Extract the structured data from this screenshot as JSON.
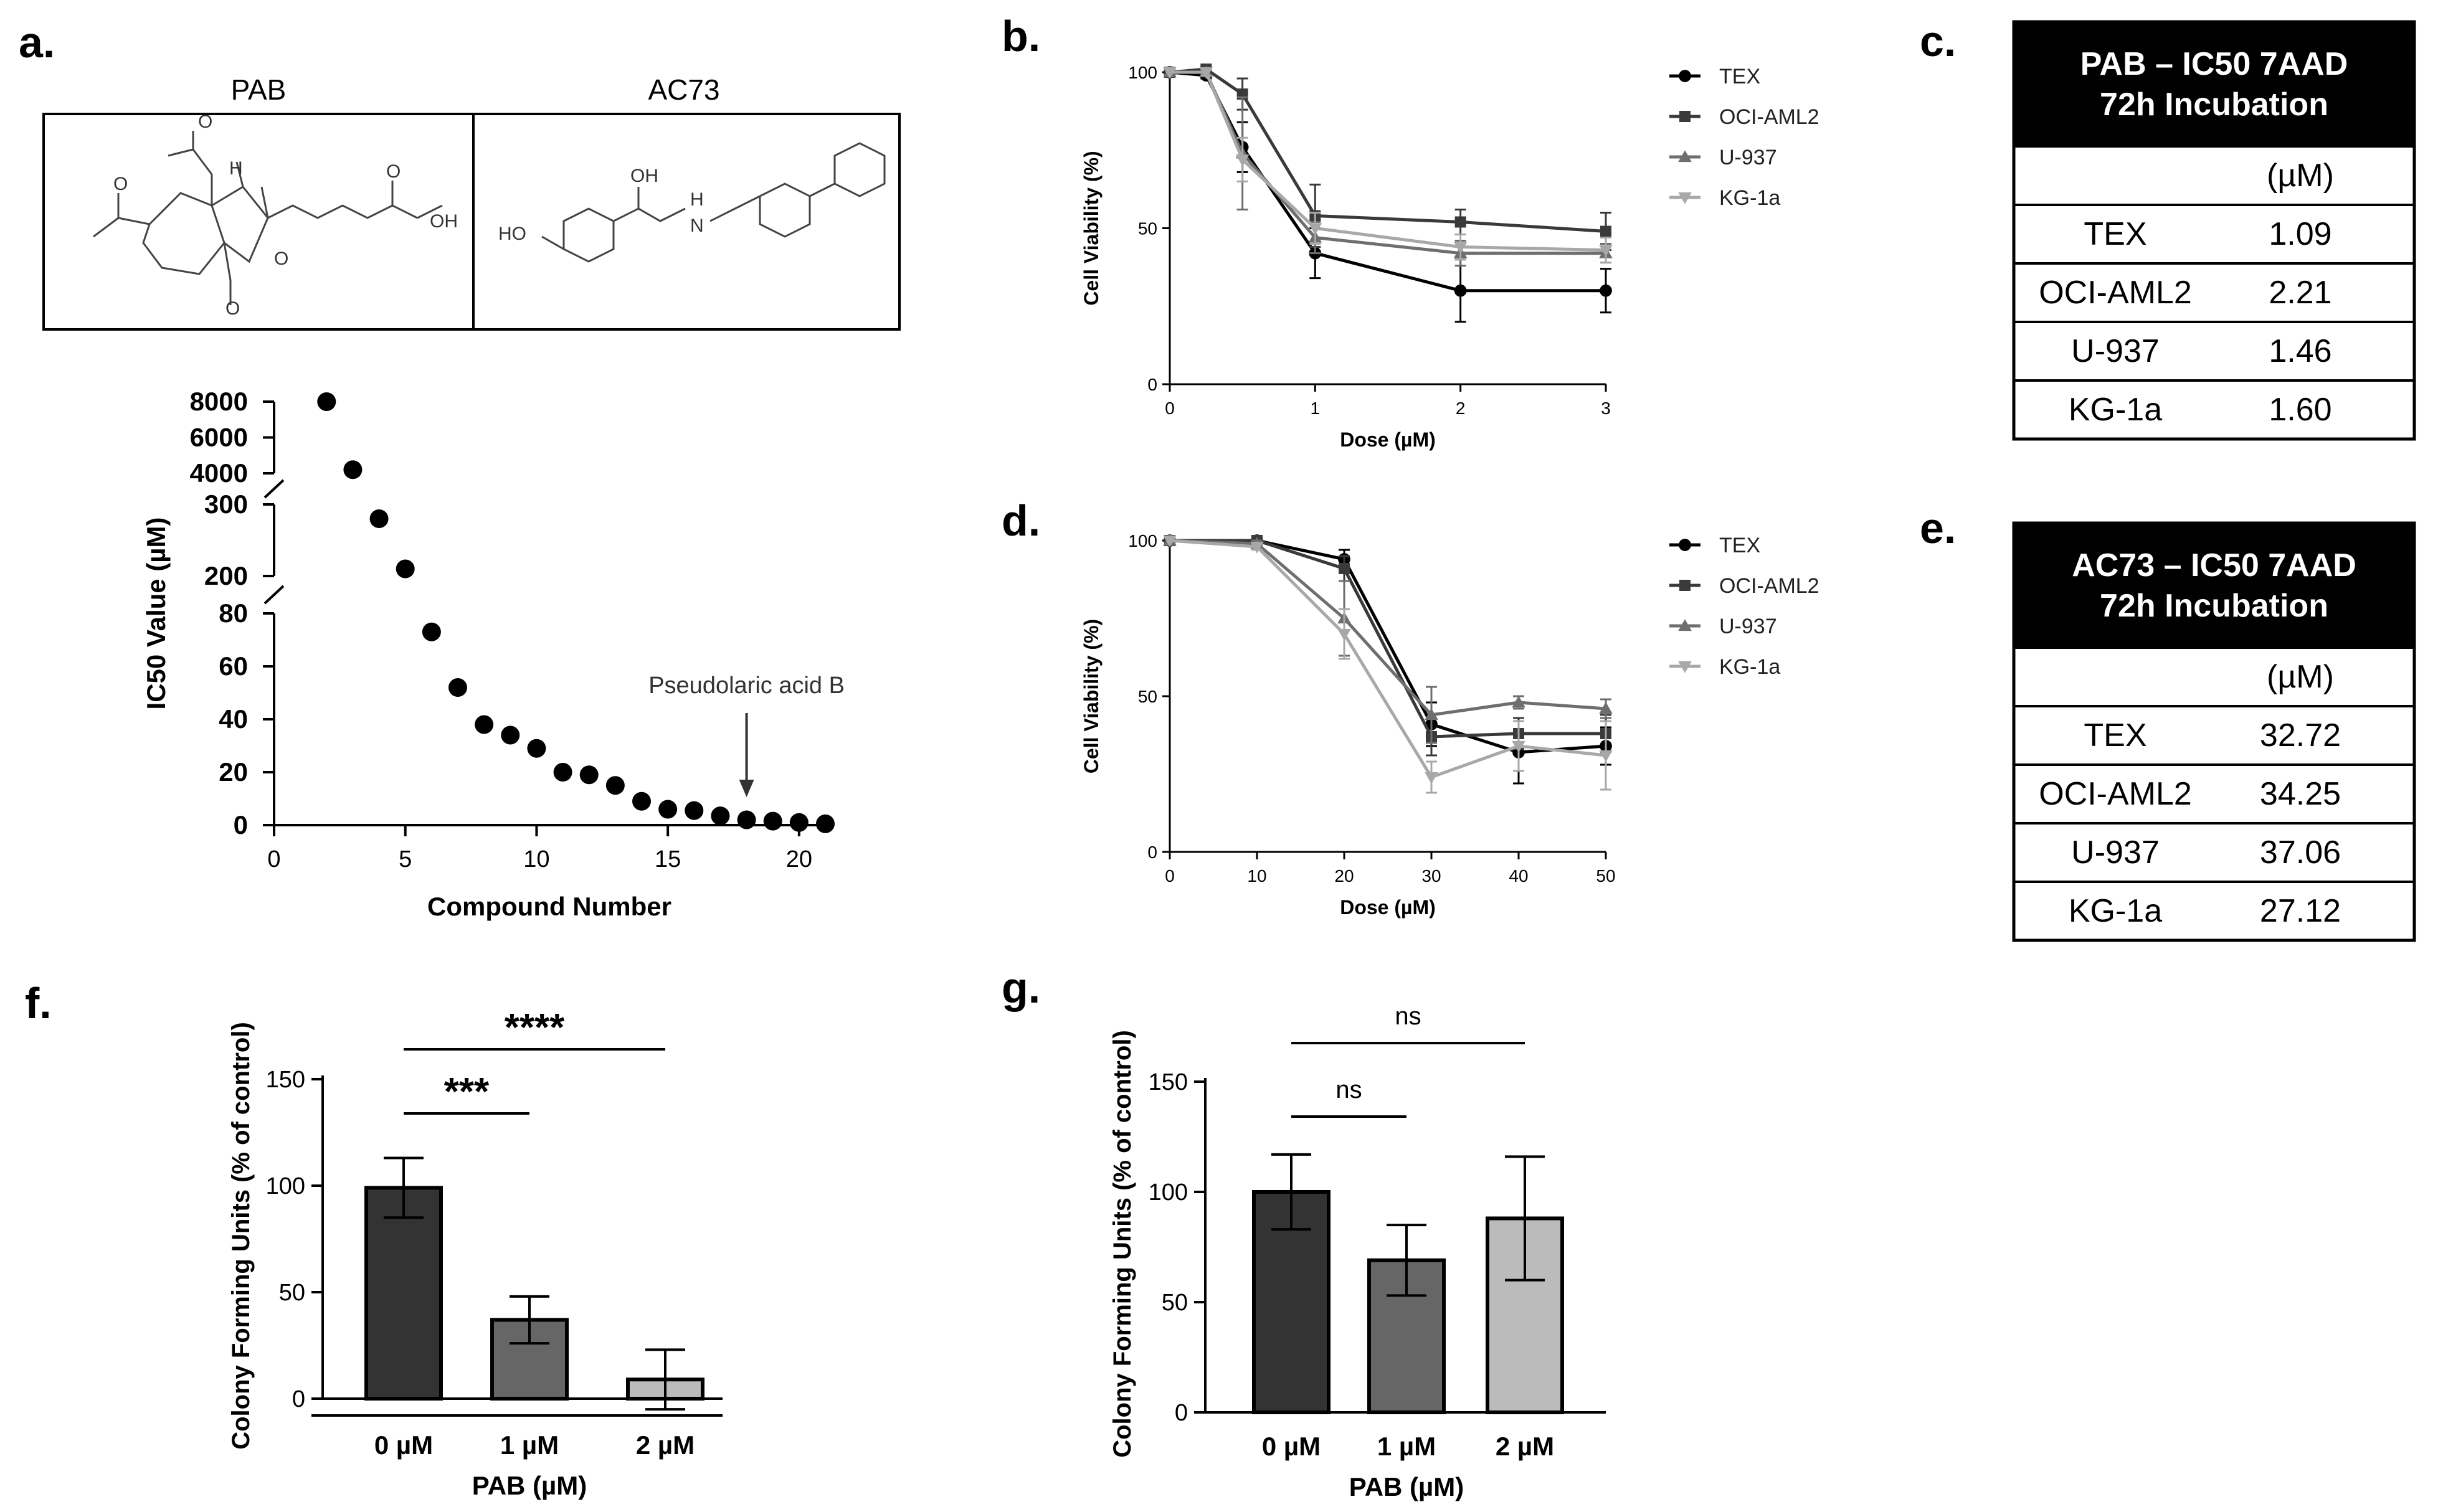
{
  "panels": {
    "a": "a.",
    "b": "b.",
    "c": "c.",
    "d": "d.",
    "e": "e.",
    "f": "f.",
    "g": "g."
  },
  "structures": {
    "left_name": "PAB",
    "right_name": "AC73",
    "pab_atoms": [
      "O",
      "O",
      "H",
      "OH",
      "O",
      "O",
      "O"
    ],
    "ac73_atoms": [
      "HO",
      "OH",
      "H",
      "N"
    ]
  },
  "chart_data": [
    {
      "id": "a",
      "type": "scatter",
      "x": [
        2,
        3,
        4,
        5,
        6,
        7,
        8,
        9,
        10,
        11,
        12,
        13,
        14,
        15,
        16,
        17,
        18,
        19,
        20,
        21
      ],
      "y": [
        8000,
        4200,
        280,
        210,
        73,
        52,
        38,
        34,
        29,
        20,
        19,
        15,
        9,
        6,
        5.5,
        3.5,
        2,
        1.5,
        1,
        0.5
      ],
      "xlabel": "Compound Number",
      "ylabel": "IC50 Value (µM)",
      "xlim": [
        0,
        21
      ],
      "xticks": [
        "0",
        "5",
        "10",
        "15",
        "20"
      ],
      "y_segments": [
        {
          "range": [
            0,
            80
          ],
          "ticks": [
            "0",
            "20",
            "40",
            "60",
            "80"
          ]
        },
        {
          "range": [
            200,
            300
          ],
          "ticks": [
            "200",
            "300"
          ]
        },
        {
          "range": [
            4000,
            8000
          ],
          "ticks": [
            "4000",
            "6000",
            "8000"
          ]
        }
      ],
      "annotation": {
        "text": "Pseudolaric acid B",
        "x": 18
      }
    },
    {
      "id": "b",
      "type": "line",
      "x": [
        0,
        0.25,
        0.5,
        1,
        2,
        3
      ],
      "xlabel": "Dose (µM)",
      "ylabel": "Cell Viability (%)",
      "xlim": [
        0,
        3
      ],
      "ylim": [
        0,
        100
      ],
      "xticks": [
        "0",
        "1",
        "2",
        "3"
      ],
      "yticks": [
        "0",
        "50",
        "100"
      ],
      "series": [
        {
          "name": "TEX",
          "values": [
            100,
            99,
            76,
            42,
            30,
            30
          ],
          "err": [
            0,
            1,
            8,
            8,
            10,
            7
          ],
          "color": "#000000",
          "marker": "circle"
        },
        {
          "name": "OCI-AML2",
          "values": [
            100,
            101,
            93,
            54,
            52,
            49
          ],
          "err": [
            0,
            1,
            5,
            10,
            4,
            6
          ],
          "color": "#3a3a3a",
          "marker": "square"
        },
        {
          "name": "U-937",
          "values": [
            100,
            100,
            74,
            47,
            42,
            42
          ],
          "err": [
            0,
            1,
            18,
            5,
            4,
            3
          ],
          "color": "#6e6e6e",
          "marker": "triangle-up"
        },
        {
          "name": "KG-1a",
          "values": [
            100,
            100,
            72,
            50,
            44,
            43
          ],
          "err": [
            0,
            1,
            7,
            5,
            4,
            4
          ],
          "color": "#a8a8a8",
          "marker": "triangle-down"
        }
      ]
    },
    {
      "id": "d",
      "type": "line",
      "x": [
        0,
        10,
        20,
        30,
        40,
        50
      ],
      "xlabel": "Dose (µM)",
      "ylabel": "Cell Viability (%)",
      "xlim": [
        0,
        50
      ],
      "ylim": [
        0,
        100
      ],
      "xticks": [
        "0",
        "10",
        "20",
        "30",
        "40",
        "50"
      ],
      "yticks": [
        "0",
        "50",
        "100"
      ],
      "series": [
        {
          "name": "TEX",
          "values": [
            100,
            100,
            94,
            41,
            32,
            34
          ],
          "err": [
            0,
            1,
            3,
            7,
            10,
            6
          ],
          "color": "#000000",
          "marker": "circle"
        },
        {
          "name": "OCI-AML2",
          "values": [
            100,
            100,
            91,
            37,
            38,
            38
          ],
          "err": [
            0,
            1,
            4,
            6,
            5,
            6
          ],
          "color": "#3a3a3a",
          "marker": "square"
        },
        {
          "name": "U-937",
          "values": [
            100,
            99,
            75,
            44,
            48,
            46
          ],
          "err": [
            0,
            1,
            12,
            9,
            2,
            3
          ],
          "color": "#6e6e6e",
          "marker": "triangle-up"
        },
        {
          "name": "KG-1a",
          "values": [
            100,
            98,
            70,
            24,
            34,
            31
          ],
          "err": [
            0,
            1,
            8,
            5,
            8,
            11
          ],
          "color": "#a8a8a8",
          "marker": "triangle-down"
        }
      ]
    },
    {
      "id": "f",
      "type": "bar",
      "categories": [
        "0 µM",
        "1 µM",
        "2 µM"
      ],
      "values": [
        99,
        37,
        9
      ],
      "err": [
        14,
        11,
        14
      ],
      "colors": [
        "#333333",
        "#666666",
        "#bbbbbb"
      ],
      "xlabel": "PAB (µM)",
      "ylabel": "Colony Forming Units (% of control)",
      "ylim": [
        0,
        150
      ],
      "yticks": [
        "0",
        "50",
        "100",
        "150"
      ],
      "significance": [
        {
          "from": 0,
          "to": 1,
          "label": "***"
        },
        {
          "from": 0,
          "to": 2,
          "label": "****"
        }
      ]
    },
    {
      "id": "g",
      "type": "bar",
      "categories": [
        "0 µM",
        "1 µM",
        "2 µM"
      ],
      "values": [
        100,
        69,
        88
      ],
      "err": [
        17,
        16,
        28
      ],
      "colors": [
        "#333333",
        "#666666",
        "#bbbbbb"
      ],
      "xlabel": "PAB (µM)",
      "ylabel": "Colony Forming Units (% of control)",
      "ylim": [
        0,
        150
      ],
      "yticks": [
        "0",
        "50",
        "100",
        "150"
      ],
      "significance": [
        {
          "from": 0,
          "to": 1,
          "label": "ns"
        },
        {
          "from": 0,
          "to": 2,
          "label": "ns"
        }
      ]
    }
  ],
  "tables": {
    "c": {
      "header_line1": "PAB – IC50 7AAD",
      "header_line2": "72h Incubation",
      "unit": "(µM)",
      "rows": [
        {
          "label": "TEX",
          "value": "1.09"
        },
        {
          "label": "OCI-AML2",
          "value": "2.21"
        },
        {
          "label": "U-937",
          "value": "1.46"
        },
        {
          "label": "KG-1a",
          "value": "1.60"
        }
      ]
    },
    "e": {
      "header_line1": "AC73 – IC50 7AAD",
      "header_line2": "72h Incubation",
      "unit": "(µM)",
      "rows": [
        {
          "label": "TEX",
          "value": "32.72"
        },
        {
          "label": "OCI-AML2",
          "value": "34.25"
        },
        {
          "label": "U-937",
          "value": "37.06"
        },
        {
          "label": "KG-1a",
          "value": "27.12"
        }
      ]
    }
  }
}
